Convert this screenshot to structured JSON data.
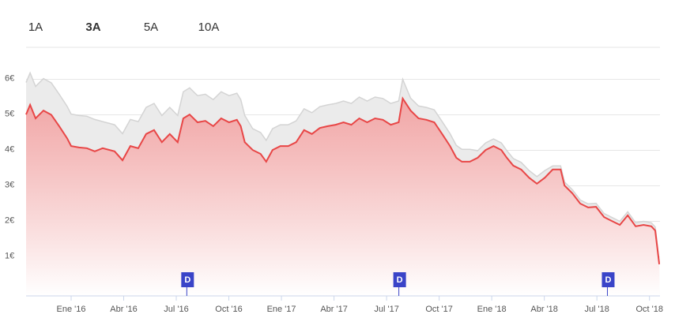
{
  "chart_data": {
    "type": "area",
    "range_buttons": [
      "1A",
      "3A",
      "5A",
      "10A"
    ],
    "selected_range": 1,
    "disabled_range": 3,
    "x": [
      -2.57,
      -2.34,
      -2.03,
      -1.58,
      -1.13,
      -0.68,
      -0.23,
      0,
      0.45,
      0.9,
      1.35,
      1.8,
      2.48,
      2.93,
      3.38,
      3.83,
      4.28,
      4.73,
      5.18,
      5.63,
      6.08,
      6.4,
      6.76,
      7.21,
      7.66,
      8.11,
      8.56,
      9.01,
      9.46,
      9.68,
      9.91,
      10.36,
      10.81,
      11.13,
      11.49,
      11.94,
      12.39,
      12.84,
      13.29,
      13.74,
      14.19,
      14.64,
      15.09,
      15.54,
      15.99,
      16.44,
      16.89,
      17.34,
      17.79,
      18.24,
      18.69,
      18.92,
      19.37,
      19.82,
      20.27,
      20.72,
      21.17,
      21.62,
      21.98,
      22.3,
      22.75,
      23.2,
      23.65,
      24.1,
      24.55,
      24.86,
      25.23,
      25.68,
      26.13,
      26.58,
      27.03,
      27.48,
      27.93,
      28.15,
      28.6,
      29.05,
      29.5,
      29.95,
      30.41,
      30.86,
      31.31,
      31.76,
      32.21,
      32.66,
      33.11,
      33.33,
      33.56
    ],
    "series": [
      {
        "color": "#d4d4d4",
        "fill": "#ebebeb",
        "values": [
          5.91,
          6.18,
          5.8,
          6.02,
          5.9,
          5.58,
          5.24,
          5.02,
          4.98,
          4.96,
          4.87,
          4.81,
          4.72,
          4.47,
          4.87,
          4.81,
          5.21,
          5.32,
          4.98,
          5.21,
          4.98,
          5.65,
          5.76,
          5.54,
          5.58,
          5.43,
          5.65,
          5.54,
          5.61,
          5.43,
          4.98,
          4.61,
          4.5,
          4.28,
          4.61,
          4.72,
          4.72,
          4.83,
          5.17,
          5.06,
          5.23,
          5.28,
          5.32,
          5.39,
          5.32,
          5.5,
          5.39,
          5.5,
          5.46,
          5.32,
          5.39,
          6.0,
          5.47,
          5.25,
          5.21,
          5.14,
          4.81,
          4.47,
          4.14,
          4.03,
          4.03,
          3.99,
          4.21,
          4.32,
          4.21,
          3.99,
          3.77,
          3.66,
          3.43,
          3.26,
          3.43,
          3.56,
          3.56,
          3.11,
          2.89,
          2.6,
          2.49,
          2.51,
          2.22,
          2.11,
          2.0,
          2.27,
          1.96,
          2.0,
          1.96,
          1.84,
          0.85
        ]
      },
      {
        "color": "#e84646",
        "fill": "#f4a3a3",
        "values": [
          5.01,
          5.28,
          4.9,
          5.12,
          5.0,
          4.68,
          4.34,
          4.12,
          4.08,
          4.06,
          3.97,
          4.06,
          3.97,
          3.72,
          4.12,
          4.06,
          4.46,
          4.57,
          4.23,
          4.46,
          4.23,
          4.9,
          5.01,
          4.79,
          4.83,
          4.68,
          4.9,
          4.79,
          4.86,
          4.68,
          4.23,
          4.01,
          3.9,
          3.68,
          4.01,
          4.12,
          4.12,
          4.23,
          4.57,
          4.46,
          4.63,
          4.68,
          4.72,
          4.79,
          4.72,
          4.9,
          4.79,
          4.9,
          4.86,
          4.72,
          4.79,
          5.46,
          5.12,
          4.9,
          4.86,
          4.79,
          4.46,
          4.12,
          3.79,
          3.68,
          3.68,
          3.79,
          4.01,
          4.12,
          4.01,
          3.79,
          3.57,
          3.46,
          3.23,
          3.06,
          3.23,
          3.46,
          3.46,
          3.01,
          2.79,
          2.5,
          2.39,
          2.41,
          2.12,
          2.01,
          1.9,
          2.17,
          1.86,
          1.9,
          1.86,
          1.74,
          0.79
        ]
      }
    ],
    "xlim": [
      -2.57,
      33.6
    ],
    "ylim": [
      -0.1,
      6.9
    ],
    "yticks": [
      {
        "value": 1,
        "label": "1€"
      },
      {
        "value": 2,
        "label": "2€"
      },
      {
        "value": 3,
        "label": "3€"
      },
      {
        "value": 4,
        "label": "4€"
      },
      {
        "value": 5,
        "label": "5€"
      },
      {
        "value": 6,
        "label": "6€"
      }
    ],
    "xticks": [
      {
        "value": 0,
        "label": "Ene '16"
      },
      {
        "value": 3,
        "label": "Abr '16"
      },
      {
        "value": 6,
        "label": "Jul '16"
      },
      {
        "value": 9,
        "label": "Oct '16"
      },
      {
        "value": 12,
        "label": "Ene '17"
      },
      {
        "value": 15,
        "label": "Abr '17"
      },
      {
        "value": 18,
        "label": "Jul '17"
      },
      {
        "value": 21,
        "label": "Oct '17"
      },
      {
        "value": 24,
        "label": "Ene '18"
      },
      {
        "value": 27,
        "label": "Abr '18"
      },
      {
        "value": 30,
        "label": "Jul '18"
      },
      {
        "value": 33,
        "label": "Oct '18"
      }
    ],
    "grid": true,
    "annotations": [
      {
        "x": 6.6,
        "label": "D"
      },
      {
        "x": 18.7,
        "label": "D"
      },
      {
        "x": 30.6,
        "label": "D"
      }
    ],
    "annotation_color": "#3a44c8"
  }
}
